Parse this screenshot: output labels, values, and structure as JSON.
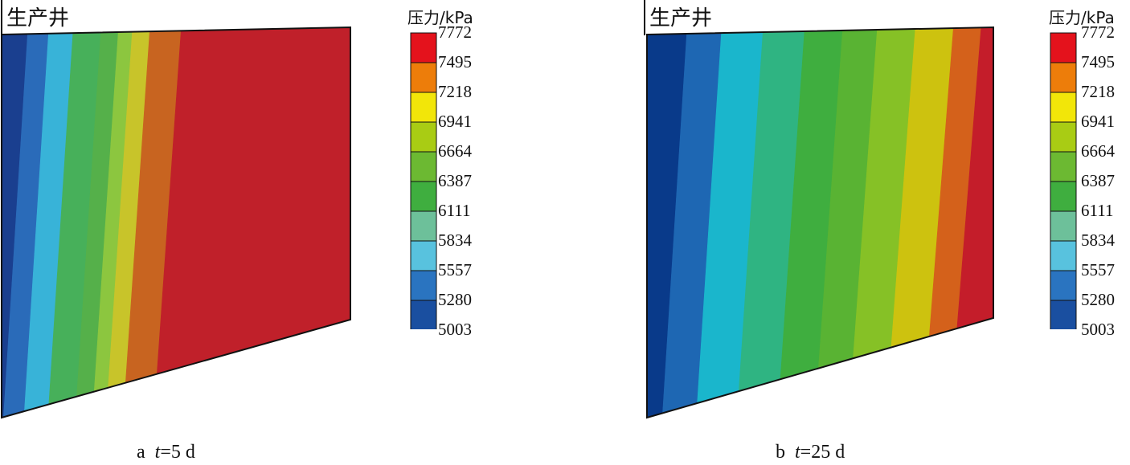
{
  "panels": [
    {
      "well_label": "生产井",
      "legend_title": "压力/kPa",
      "caption_prefix": "a",
      "caption_var": "t",
      "caption_value": "=5 d",
      "band_colors": [
        "#1a3f8f",
        "#2a6bb9",
        "#38b3d8",
        "#47b05a",
        "#55b04a",
        "#8cc63f",
        "#c8c42a",
        "#c86420",
        "#c0202a"
      ],
      "band_stops": [
        0,
        0.04,
        0.1,
        0.17,
        0.25,
        0.3,
        0.34,
        0.39,
        0.48
      ]
    },
    {
      "well_label": "生产井",
      "legend_title": "压力/kPa",
      "caption_prefix": "b",
      "caption_var": "t",
      "caption_value": "=25 d",
      "band_colors": [
        "#093a8a",
        "#1e67b3",
        "#1ab6cc",
        "#2fb482",
        "#3fae3f",
        "#59b333",
        "#86c126",
        "#cdc20f",
        "#d4611b",
        "#c41d2a"
      ],
      "band_stops": [
        0,
        0.08,
        0.18,
        0.3,
        0.42,
        0.53,
        0.63,
        0.74,
        0.85,
        0.93
      ]
    }
  ],
  "legend": {
    "colors": [
      "#1a4fa0",
      "#2a74c0",
      "#58c2de",
      "#6dc09a",
      "#3fae3f",
      "#6cb932",
      "#a9cc14",
      "#f2e609",
      "#ed7d0a",
      "#e4121c"
    ],
    "ticks": [
      "7772",
      "7495",
      "7218",
      "6941",
      "6664",
      "6387",
      "6111",
      "5834",
      "5557",
      "5280",
      "5003"
    ]
  }
}
